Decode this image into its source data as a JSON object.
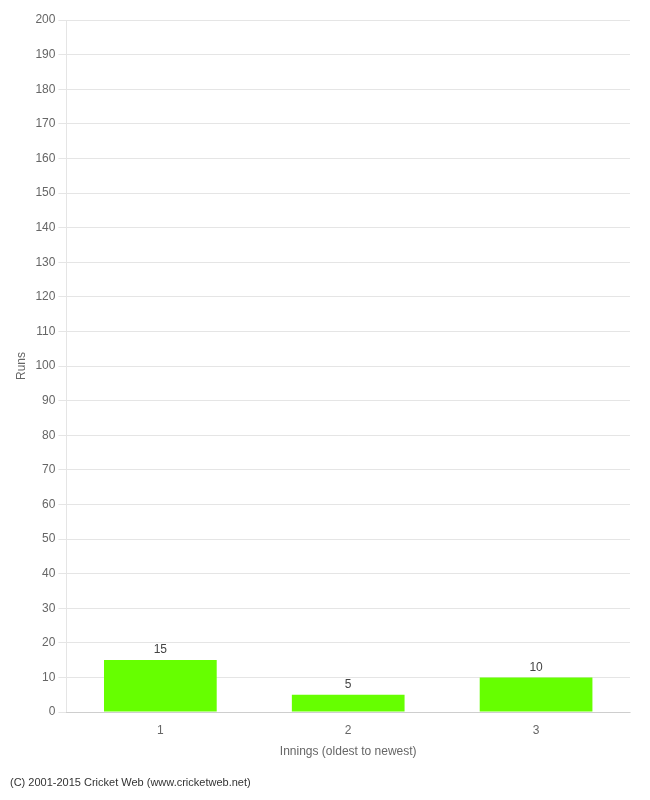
{
  "chart_data": {
    "type": "bar",
    "categories": [
      "1",
      "2",
      "3"
    ],
    "values": [
      15,
      5,
      10
    ],
    "color": "#66ff00",
    "xlabel": "Innings (oldest to newest)",
    "ylabel": "Runs",
    "ylim": [
      0,
      200
    ],
    "yticks": [
      0,
      10,
      20,
      30,
      40,
      50,
      60,
      70,
      80,
      90,
      100,
      110,
      120,
      130,
      140,
      150,
      160,
      170,
      180,
      190,
      200
    ],
    "grid": true,
    "data_labels": true,
    "annotations": [
      "(C) 2001-2015 Cricket Web (www.cricketweb.net)"
    ]
  }
}
